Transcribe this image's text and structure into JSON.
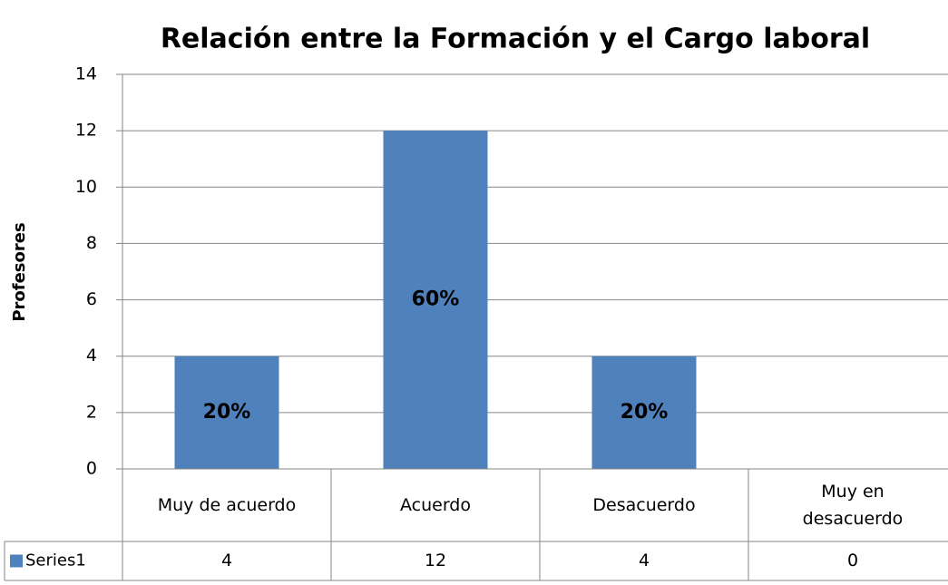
{
  "chart_data": {
    "type": "bar",
    "title": "Relación entre la Formación y el Cargo laboral",
    "y_label": "Profesores",
    "categories": [
      "Muy de acuerdo",
      "Acuerdo",
      "Desacuerdo",
      "Muy en desacuerdo"
    ],
    "series": [
      {
        "name": "Series1",
        "color": "#4f81bd",
        "values": [
          4,
          12,
          4,
          0
        ],
        "data_labels": [
          "20%",
          "60%",
          "20%",
          null
        ]
      }
    ],
    "ylim": [
      0,
      14
    ],
    "yticks": [
      0,
      2,
      4,
      6,
      8,
      10,
      12,
      14
    ],
    "grid": true,
    "data_table": true
  }
}
